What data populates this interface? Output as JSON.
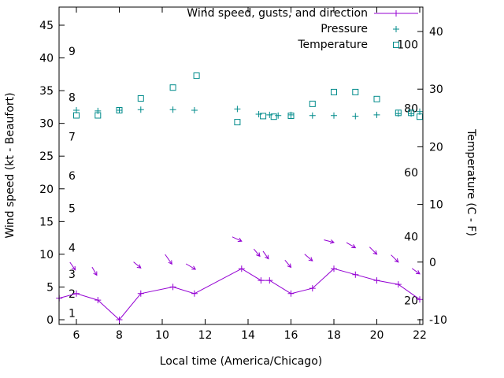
{
  "chart_data": {
    "type": "line",
    "title": "",
    "xlabel": "Local time (America/Chicago)",
    "ylabel_left": "Wind speed (kt - Beaufort)",
    "ylabel_right": "Temperature (C - F)",
    "grid": false,
    "legend_position": "top-right-inside",
    "x_ticks": [
      6,
      8,
      10,
      12,
      14,
      16,
      18,
      20,
      22
    ],
    "x_range": [
      5.2,
      22.15
    ],
    "left_ticks_kt": [
      0,
      5,
      10,
      15,
      20,
      25,
      30,
      35,
      40,
      45
    ],
    "left_range_kt": [
      -0.7,
      47.8
    ],
    "right_ticks_c": [
      -10,
      0,
      10,
      20,
      30,
      40
    ],
    "right_range_c": [
      -10.8,
      44.2
    ],
    "beaufort_scale": [
      {
        "b": 1,
        "kt": 1
      },
      {
        "b": 2,
        "kt": 4
      },
      {
        "b": 3,
        "kt": 7
      },
      {
        "b": 4,
        "kt": 11
      },
      {
        "b": 5,
        "kt": 17
      },
      {
        "b": 6,
        "kt": 22
      },
      {
        "b": 7,
        "kt": 28
      },
      {
        "b": 8,
        "kt": 34
      },
      {
        "b": 9,
        "kt": 41
      }
    ],
    "fahrenheit_scale": [
      20,
      40,
      60,
      80,
      100
    ],
    "legend": [
      {
        "label": "Wind speed, gusts, and direction",
        "marker": "line-plus"
      },
      {
        "label": "Pressure",
        "marker": "plus"
      },
      {
        "label": "Temperature",
        "marker": "square"
      }
    ],
    "colors": {
      "wind": "#9400d3",
      "pressure": "#008b8b",
      "temperature": "#008b8b",
      "axis": "#000000"
    },
    "series": {
      "wind": {
        "name": "Wind speed (kt)",
        "x": [
          5.2,
          6,
          7,
          8,
          9,
          10.5,
          11.5,
          13.7,
          14.6,
          15,
          16,
          17,
          18,
          19,
          20,
          21,
          22
        ],
        "kt": [
          3.3,
          4,
          3,
          0,
          4,
          5,
          4,
          7.8,
          6,
          6,
          4,
          4.8,
          7.8,
          6.9,
          6,
          5.4,
          3.1
        ]
      },
      "wind_arrows": [
        {
          "t": 5.95,
          "kt": 7.6,
          "dir": 55,
          "len": 12
        },
        {
          "t": 6.95,
          "kt": 6.8,
          "dir": 60,
          "len": 12
        },
        {
          "t": 9.0,
          "kt": 7.9,
          "dir": 40,
          "len": 12
        },
        {
          "t": 10.45,
          "kt": 8.5,
          "dir": 55,
          "len": 15
        },
        {
          "t": 11.55,
          "kt": 7.7,
          "dir": 30,
          "len": 14
        },
        {
          "t": 13.7,
          "kt": 12.0,
          "dir": 25,
          "len": 13
        },
        {
          "t": 14.55,
          "kt": 9.7,
          "dir": 50,
          "len": 12
        },
        {
          "t": 14.95,
          "kt": 9.3,
          "dir": 55,
          "len": 12
        },
        {
          "t": 16.0,
          "kt": 8.0,
          "dir": 50,
          "len": 12
        },
        {
          "t": 17.0,
          "kt": 9.0,
          "dir": 40,
          "len": 13
        },
        {
          "t": 18.0,
          "kt": 11.8,
          "dir": 15,
          "len": 13
        },
        {
          "t": 19.0,
          "kt": 11.0,
          "dir": 30,
          "len": 13
        },
        {
          "t": 20.0,
          "kt": 10.0,
          "dir": 45,
          "len": 13
        },
        {
          "t": 21.0,
          "kt": 8.8,
          "dir": 45,
          "len": 13
        },
        {
          "t": 22.0,
          "kt": 7.0,
          "dir": 35,
          "len": 12
        }
      ],
      "pressure": {
        "name": "Pressure (plotted on left-axis units, scale not shown)",
        "x": [
          6,
          7,
          8,
          9,
          10.5,
          11.5,
          13.5,
          14.5,
          15,
          15.4,
          16,
          17,
          18,
          19,
          20,
          21,
          21.6,
          22
        ],
        "y_left_axis": [
          32,
          31.9,
          32,
          32.1,
          32.1,
          32,
          32.2,
          31.4,
          31.3,
          31.2,
          31.3,
          31.2,
          31.2,
          31.1,
          31.3,
          31.5,
          31.5,
          31.8
        ]
      },
      "temperature": {
        "name": "Temperature (F, right inner scale)",
        "x": [
          6,
          7,
          8,
          9,
          10.5,
          11.6,
          13.5,
          14.7,
          15.2,
          16,
          17,
          18,
          19,
          20,
          21,
          21.6,
          22
        ],
        "f": [
          77.8,
          77.8,
          79.4,
          83.1,
          86.5,
          90.2,
          75.7,
          77.6,
          77.4,
          77.7,
          81.4,
          85.1,
          85.1,
          82.9,
          78.6,
          78.6,
          77.4
        ]
      }
    }
  }
}
